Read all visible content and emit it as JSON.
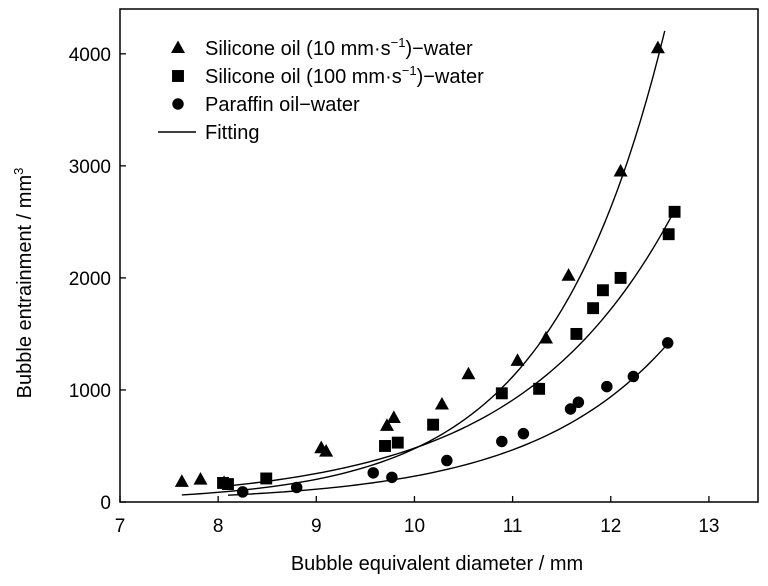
{
  "chart_data": {
    "type": "scatter",
    "title": "",
    "xlabel": "Bubble equivalent diameter / mm",
    "ylabel": "Bubble entrainment / mm",
    "ylabel_sup": "3",
    "xlim": [
      7,
      13.5
    ],
    "ylim": [
      0,
      4400
    ],
    "x_ticks": [
      7,
      8,
      9,
      10,
      11,
      12,
      13
    ],
    "y_ticks": [
      0,
      1000,
      2000,
      3000,
      4000
    ],
    "x_tick_labels": [
      "7",
      "8",
      "9",
      "10",
      "11",
      "12",
      "13"
    ],
    "y_tick_labels": [
      "0",
      "1000",
      "2000",
      "3000",
      "4000"
    ],
    "grid": false,
    "legend_position": "top-left",
    "series": [
      {
        "name": "Silicone oil (10 mm·s−1)−water",
        "legend_pre": "Silicone oil (10 mm·s",
        "legend_sup": "−1",
        "legend_post": ")−water",
        "marker": "triangle",
        "x": [
          7.63,
          7.82,
          8.06,
          9.05,
          9.1,
          9.72,
          9.79,
          10.28,
          10.55,
          11.05,
          11.34,
          11.57,
          12.1,
          12.48
        ],
        "y": [
          180,
          200,
          170,
          480,
          450,
          680,
          750,
          870,
          1140,
          1260,
          1460,
          2020,
          2950,
          4050
        ],
        "fit": {
          "a": 0.09255,
          "b": 0.8545,
          "xmin": 7.63,
          "xmax": 12.55
        }
      },
      {
        "name": "Silicone oil (100 mm·s−1)−water",
        "legend_pre": "Silicone oil (100 mm·s",
        "legend_sup": "−1",
        "legend_post": ")−water",
        "marker": "square",
        "x": [
          8.05,
          8.1,
          8.49,
          9.7,
          9.83,
          10.19,
          10.89,
          11.27,
          11.65,
          11.82,
          11.92,
          12.1,
          12.59,
          12.65
        ],
        "y": [
          170,
          160,
          210,
          500,
          530,
          690,
          970,
          1010,
          1500,
          1730,
          1890,
          2000,
          2390,
          2590
        ],
        "fit": {
          "a": 0.8217,
          "b": 0.6372,
          "xmin": 8.1,
          "xmax": 12.65
        }
      },
      {
        "name": "Paraffin oil−water",
        "legend_pre": "Paraffin oil−water",
        "legend_sup": "",
        "legend_post": "",
        "marker": "circle",
        "x": [
          8.25,
          8.8,
          9.58,
          9.77,
          10.33,
          10.89,
          11.11,
          11.59,
          11.67,
          11.96,
          12.23,
          12.58
        ],
        "y": [
          90,
          130,
          260,
          220,
          370,
          540,
          610,
          830,
          890,
          1030,
          1120,
          1420
        ],
        "fit": {
          "a": 0.2057,
          "b": 0.7022,
          "xmin": 8.1,
          "xmax": 12.6
        }
      }
    ],
    "legend_fit_label": "Fitting"
  }
}
